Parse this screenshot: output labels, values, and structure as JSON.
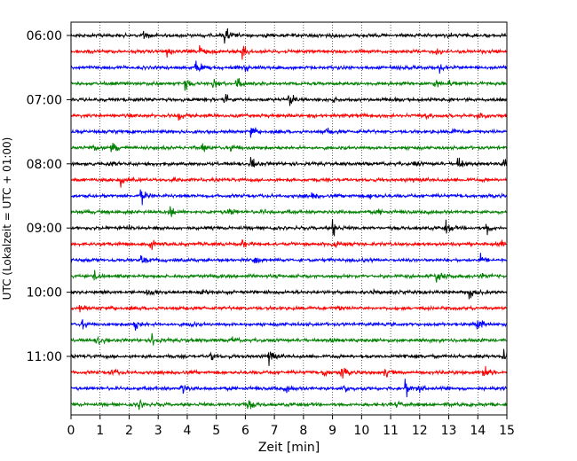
{
  "chart_data": {
    "type": "line",
    "title": "",
    "xlabel": "Zeit  [min]",
    "ylabel": "UTC (Lokalzeit = UTC + 01:00)",
    "xlim": [
      0,
      15
    ],
    "x_ticks": [
      "0",
      "1",
      "2",
      "3",
      "4",
      "5",
      "6",
      "7",
      "8",
      "9",
      "10",
      "11",
      "12",
      "13",
      "14",
      "15"
    ],
    "y_ticks": [
      "06:00",
      "07:00",
      "08:00",
      "09:00",
      "10:00",
      "11:00"
    ],
    "y_tick_rows": [
      0,
      4,
      8,
      12,
      16,
      20
    ],
    "grid": "vertical dotted",
    "trace_interval_minutes": 15,
    "trace_colors": [
      "#000000",
      "#ff0000",
      "#0000ff",
      "#008000"
    ],
    "series": [
      {
        "start": "06:00",
        "events": [
          [
            2.5,
            0.5
          ],
          [
            5.3,
            1.0
          ],
          [
            6.6,
            0.3
          ],
          [
            13.0,
            0.2
          ]
        ]
      },
      {
        "start": "06:15",
        "events": [
          [
            3.3,
            0.6
          ],
          [
            4.4,
            0.5
          ],
          [
            5.9,
            1.0
          ],
          [
            12.6,
            0.4
          ]
        ]
      },
      {
        "start": "06:30",
        "events": [
          [
            4.3,
            1.0
          ],
          [
            6.0,
            0.4
          ],
          [
            12.7,
            0.5
          ]
        ]
      },
      {
        "start": "06:45",
        "events": [
          [
            3.9,
            0.9
          ],
          [
            4.9,
            0.5
          ],
          [
            5.7,
            0.8
          ],
          [
            12.5,
            0.5
          ],
          [
            13.0,
            0.3
          ]
        ]
      },
      {
        "start": "07:00",
        "events": [
          [
            5.3,
            0.6
          ],
          [
            7.5,
            1.0
          ],
          [
            9.0,
            0.3
          ]
        ]
      },
      {
        "start": "07:15",
        "events": [
          [
            3.7,
            0.5
          ],
          [
            4.7,
            0.2
          ],
          [
            14.0,
            0.6
          ],
          [
            12.2,
            0.3
          ]
        ]
      },
      {
        "start": "07:30",
        "events": [
          [
            6.2,
            1.0
          ],
          [
            8.8,
            0.4
          ],
          [
            13.1,
            0.3
          ]
        ]
      },
      {
        "start": "07:45",
        "events": [
          [
            0.7,
            0.6
          ],
          [
            1.4,
            0.6
          ],
          [
            4.5,
            0.5
          ],
          [
            5.5,
            0.3
          ]
        ]
      },
      {
        "start": "08:00",
        "events": [
          [
            1.3,
            0.3
          ],
          [
            6.2,
            0.7
          ],
          [
            11.8,
            0.3
          ],
          [
            13.3,
            0.9
          ],
          [
            14.9,
            0.8
          ]
        ]
      },
      {
        "start": "08:15",
        "events": [
          [
            1.7,
            0.6
          ],
          [
            3.5,
            0.3
          ],
          [
            11.7,
            0.2
          ]
        ]
      },
      {
        "start": "08:30",
        "events": [
          [
            2.4,
            1.0
          ],
          [
            8.3,
            0.3
          ],
          [
            10.3,
            0.3
          ]
        ]
      },
      {
        "start": "08:45",
        "events": [
          [
            3.4,
            0.6
          ],
          [
            5.4,
            0.5
          ],
          [
            6.6,
            0.2
          ],
          [
            10.6,
            0.2
          ]
        ]
      },
      {
        "start": "09:00",
        "events": [
          [
            2.0,
            0.3
          ],
          [
            9.0,
            1.0
          ],
          [
            12.9,
            0.8
          ],
          [
            14.3,
            0.6
          ]
        ]
      },
      {
        "start": "09:15",
        "events": [
          [
            2.7,
            0.7
          ],
          [
            5.9,
            0.4
          ],
          [
            9.0,
            0.5
          ],
          [
            14.8,
            0.3
          ]
        ]
      },
      {
        "start": "09:30",
        "events": [
          [
            2.4,
            0.5
          ],
          [
            6.3,
            0.4
          ],
          [
            10.1,
            0.2
          ],
          [
            14.1,
            0.6
          ]
        ]
      },
      {
        "start": "09:45",
        "events": [
          [
            0.8,
            0.5
          ],
          [
            12.6,
            1.0
          ],
          [
            14.1,
            0.3
          ]
        ]
      },
      {
        "start": "10:00",
        "events": [
          [
            2.6,
            0.3
          ],
          [
            4.5,
            0.2
          ],
          [
            13.7,
            0.6
          ],
          [
            10.4,
            0.2
          ]
        ]
      },
      {
        "start": "10:15",
        "events": [
          [
            0.3,
            0.3
          ],
          [
            1.4,
            0.2
          ],
          [
            9.2,
            0.3
          ]
        ]
      },
      {
        "start": "10:30",
        "events": [
          [
            0.4,
            0.5
          ],
          [
            2.2,
            0.7
          ],
          [
            4.1,
            0.3
          ],
          [
            14.0,
            1.0
          ]
        ]
      },
      {
        "start": "10:45",
        "events": [
          [
            0.9,
            0.6
          ],
          [
            2.8,
            0.7
          ],
          [
            5.5,
            0.3
          ],
          [
            8.9,
            0.2
          ]
        ]
      },
      {
        "start": "11:00",
        "events": [
          [
            4.8,
            0.5
          ],
          [
            6.8,
            1.0
          ],
          [
            11.5,
            0.3
          ],
          [
            14.9,
            0.8
          ]
        ]
      },
      {
        "start": "11:15",
        "events": [
          [
            1.4,
            0.5
          ],
          [
            8.7,
            0.5
          ],
          [
            9.3,
            0.8
          ],
          [
            10.8,
            0.6
          ],
          [
            14.2,
            1.0
          ]
        ]
      },
      {
        "start": "11:30",
        "events": [
          [
            3.8,
            0.6
          ],
          [
            7.4,
            0.4
          ],
          [
            9.4,
            0.6
          ],
          [
            11.5,
            1.0
          ],
          [
            12.0,
            0.4
          ]
        ]
      },
      {
        "start": "11:45",
        "events": [
          [
            2.3,
            0.6
          ],
          [
            5.8,
            0.3
          ],
          [
            6.1,
            0.5
          ],
          [
            11.2,
            0.3
          ]
        ]
      }
    ]
  }
}
